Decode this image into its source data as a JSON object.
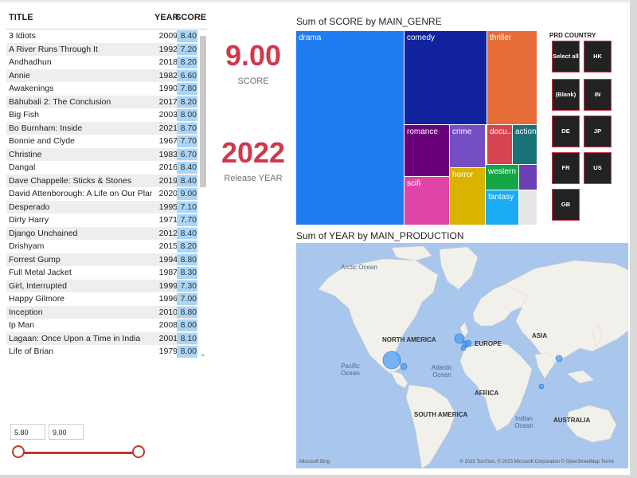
{
  "table": {
    "headers": {
      "title": "TITLE",
      "year": "YEAR",
      "score": "SCORE"
    },
    "rows": [
      {
        "title": "3 Idiots",
        "year": "2009",
        "score": "8.40"
      },
      {
        "title": "A River Runs Through It",
        "year": "1992",
        "score": "7.20"
      },
      {
        "title": "Andhadhun",
        "year": "2018",
        "score": "8.20"
      },
      {
        "title": "Annie",
        "year": "1982",
        "score": "6.60"
      },
      {
        "title": "Awakenings",
        "year": "1990",
        "score": "7.80"
      },
      {
        "title": "Bāhubali 2: The Conclusion",
        "year": "2017",
        "score": "8.20"
      },
      {
        "title": "Big Fish",
        "year": "2003",
        "score": "8.00"
      },
      {
        "title": "Bo Burnham: Inside",
        "year": "2021",
        "score": "8.70"
      },
      {
        "title": "Bonnie and Clyde",
        "year": "1967",
        "score": "7.70"
      },
      {
        "title": "Christine",
        "year": "1983",
        "score": "6.70"
      },
      {
        "title": "Dangal",
        "year": "2016",
        "score": "8.40"
      },
      {
        "title": "Dave Chappelle: Sticks & Stones",
        "year": "2019",
        "score": "8.40"
      },
      {
        "title": "David Attenborough: A Life on Our Planet",
        "year": "2020",
        "score": "9.00"
      },
      {
        "title": "Desperado",
        "year": "1995",
        "score": "7.10"
      },
      {
        "title": "Dirty Harry",
        "year": "1971",
        "score": "7.70"
      },
      {
        "title": "Django Unchained",
        "year": "2012",
        "score": "8.40"
      },
      {
        "title": "Drishyam",
        "year": "2015",
        "score": "8.20"
      },
      {
        "title": "Forrest Gump",
        "year": "1994",
        "score": "8.80"
      },
      {
        "title": "Full Metal Jacket",
        "year": "1987",
        "score": "8.30"
      },
      {
        "title": "Girl, Interrupted",
        "year": "1999",
        "score": "7.30"
      },
      {
        "title": "Happy Gilmore",
        "year": "1996",
        "score": "7.00"
      },
      {
        "title": "Inception",
        "year": "2010",
        "score": "8.80"
      },
      {
        "title": "Ip Man",
        "year": "2008",
        "score": "8.00"
      },
      {
        "title": "Lagaan: Once Upon a Time in India",
        "year": "2001",
        "score": "8.10"
      },
      {
        "title": "Life of Brian",
        "year": "1979",
        "score": "8.00"
      }
    ]
  },
  "cards": {
    "score": {
      "value": "9.00",
      "label": "SCORE"
    },
    "year": {
      "value": "2022",
      "label": "Release YEAR"
    }
  },
  "slider": {
    "min": "5.80",
    "max": "9.00"
  },
  "treemap": {
    "title": "Sum of SCORE by MAIN_GENRE",
    "tiles": [
      {
        "label": "drama",
        "color": "#1f7cf0"
      },
      {
        "label": "comedy",
        "color": "#12239e"
      },
      {
        "label": "thriller",
        "color": "#e66c37"
      },
      {
        "label": "romance",
        "color": "#6b007b"
      },
      {
        "label": "crime",
        "color": "#744ec2"
      },
      {
        "label": "docu...",
        "color": "#d64550"
      },
      {
        "label": "action",
        "color": "#197278"
      },
      {
        "label": "scifi",
        "color": "#e044a7"
      },
      {
        "label": "horror",
        "color": "#d9b300"
      },
      {
        "label": "western",
        "color": "#15a544"
      },
      {
        "label": "fantasy",
        "color": "#1aabf4"
      },
      {
        "label": "",
        "color": "#6c3fb5"
      },
      {
        "label": "",
        "color": "#e7e7e7"
      }
    ]
  },
  "slicer": {
    "title": "PRD COUNTRY",
    "options": [
      "Select all",
      "HK",
      "(Blank)",
      "IN",
      "DE",
      "JP",
      "FR",
      "US",
      "GB"
    ]
  },
  "map": {
    "title": "Sum of YEAR by MAIN_PRODUCTION",
    "oceans": [
      "Arctic Ocean",
      "Pacific Ocean",
      "Atlantic Ocean",
      "Indian Ocean"
    ],
    "continents": [
      "NORTH AMERICA",
      "EUROPE",
      "ASIA",
      "AFRICA",
      "SOUTH AMERICA",
      "AUSTRALIA"
    ],
    "attribution": "© 2022 TomTom, © 2023 Microsoft Corporation  © OpenStreetMap  Terms",
    "provider": "Microsoft Bing",
    "bubble_color": "#4a9ff5"
  }
}
